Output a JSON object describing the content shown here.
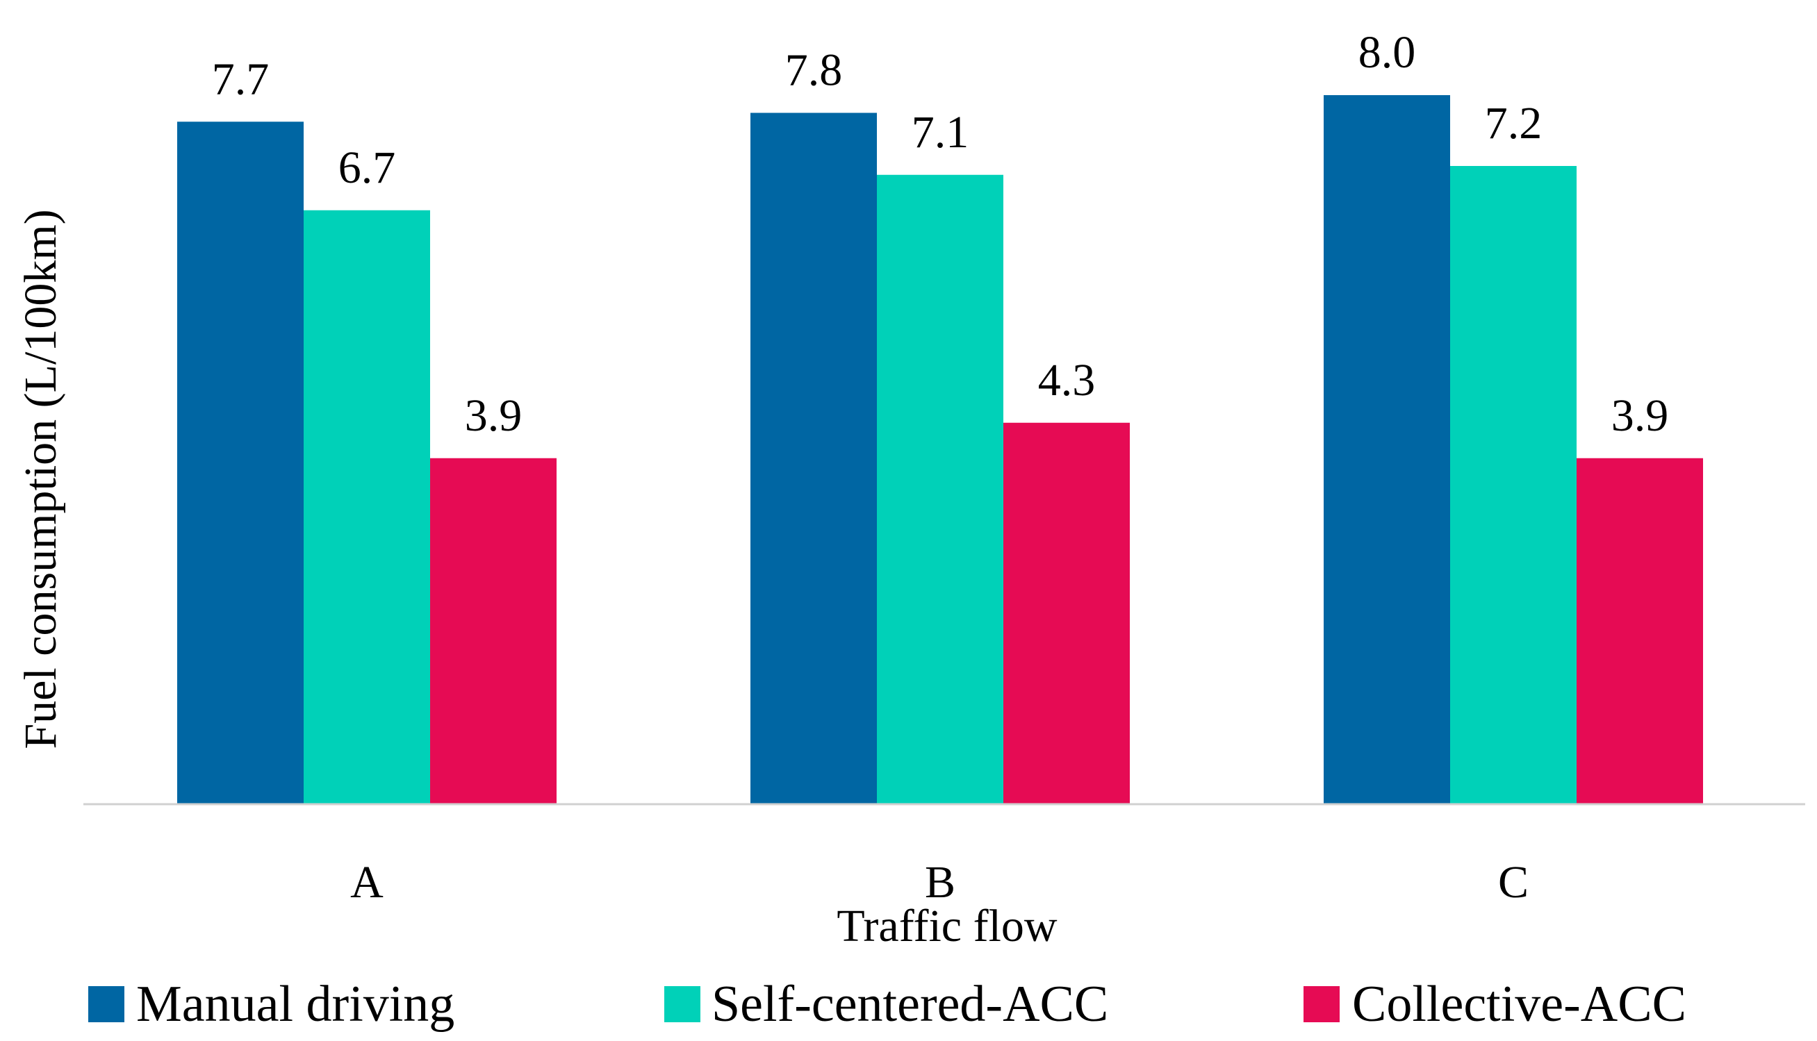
{
  "chart_data": {
    "type": "bar",
    "title": "",
    "xlabel": "Traffic flow",
    "ylabel": "Fuel consumption (L/100km)",
    "categories": [
      "A",
      "B",
      "C"
    ],
    "ylim": [
      0,
      10
    ],
    "grid": false,
    "legend_position": "bottom",
    "series": [
      {
        "name": "Manual driving",
        "color": "#0066a3",
        "values": [
          7.7,
          7.8,
          8.0
        ],
        "labels": [
          "7.7",
          "7.8",
          "8.0"
        ]
      },
      {
        "name": "Self-centered-ACC",
        "color": "#00d1b8",
        "values": [
          6.7,
          7.1,
          7.2
        ],
        "labels": [
          "6.7",
          "7.1",
          "7.2"
        ]
      },
      {
        "name": "Collective-ACC",
        "color": "#e60b54",
        "values": [
          3.9,
          4.3,
          3.9
        ],
        "labels": [
          "3.9",
          "4.3",
          "3.9"
        ]
      }
    ]
  }
}
